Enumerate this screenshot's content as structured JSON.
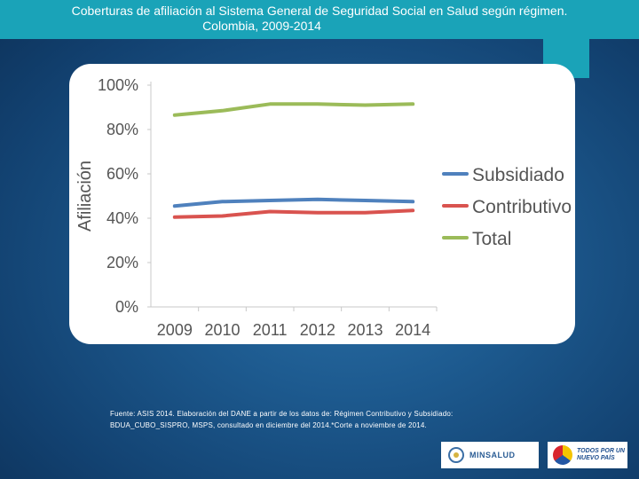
{
  "header": {
    "title_line1": "Coberturas de afiliación al Sistema General de Seguridad Social en Salud según régimen.",
    "title_line2": "Colombia, 2009-2014"
  },
  "chart_data": {
    "type": "line",
    "title": "Coberturas de afiliación al Sistema General de Seguridad Social en Salud según régimen. Colombia, 2009-2014",
    "xlabel": "",
    "ylabel": "Afiliación",
    "categories": [
      "2009",
      "2010",
      "2011",
      "2012",
      "2013",
      "2014"
    ],
    "ylim": [
      0,
      100
    ],
    "yticks": [
      "0%",
      "20%",
      "40%",
      "60%",
      "80%",
      "100%"
    ],
    "grid": false,
    "legend": "right",
    "series": [
      {
        "name": "Subsidiado",
        "color": "#4f81bd",
        "values": [
          45.5,
          47.5,
          48,
          48.5,
          48,
          47.5
        ]
      },
      {
        "name": "Contributivo",
        "color": "#d9534f",
        "values": [
          40.5,
          41,
          43,
          42.5,
          42.5,
          43.5
        ]
      },
      {
        "name": "Total",
        "color": "#9bbb59",
        "values": [
          86.5,
          88.5,
          91.5,
          91.5,
          91,
          91.5
        ]
      }
    ]
  },
  "footer": {
    "source_line1": "Fuente: ASIS 2014. Elaboración del DANE a partir de los datos de: Régimen Contributivo y Subsidiado:",
    "source_line2": "BDUA_CUBO_SISPRO, MSPS, consultado en diciembre del 2014.*Corte a noviembre de 2014.",
    "logo1_text": "MINSALUD",
    "logo2_line1": "TODOS POR UN",
    "logo2_line2": "NUEVO PAÍS"
  }
}
